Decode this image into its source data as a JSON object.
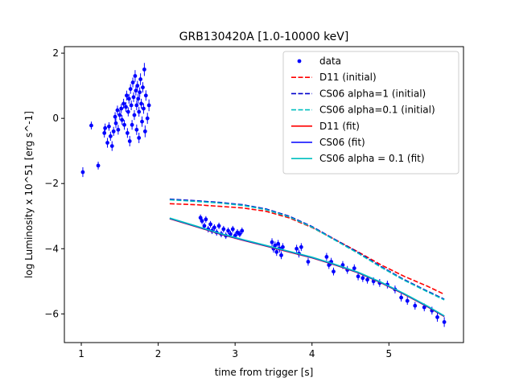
{
  "chart_data": {
    "type": "scatter",
    "title": "GRB130420A [1.0-10000 keV]",
    "xlabel": "time from trigger [s]",
    "ylabel": "log Luminosity x 10^51 [erg s^-1]",
    "xlim": [
      0.78,
      5.97
    ],
    "ylim": [
      -6.88,
      2.2
    ],
    "xticks": [
      1,
      2,
      3,
      4,
      5
    ],
    "yticks": [
      -6,
      -4,
      -2,
      0,
      2
    ],
    "xtick_labels": [
      "1",
      "2",
      "3",
      "4",
      "5"
    ],
    "ytick_labels": [
      "−6",
      "−4",
      "−2",
      "0",
      "2"
    ],
    "legend_position": "top-right",
    "series": [
      {
        "name": "data",
        "kind": "errorbar-points",
        "color": "#0000ff",
        "points": [
          [
            1.02,
            -1.65,
            0.15
          ],
          [
            1.13,
            -0.22,
            0.12
          ],
          [
            1.22,
            -1.45,
            0.12
          ],
          [
            1.3,
            -0.45,
            0.14
          ],
          [
            1.31,
            -0.3,
            0.14
          ],
          [
            1.34,
            -0.75,
            0.15
          ],
          [
            1.36,
            -0.25,
            0.13
          ],
          [
            1.38,
            -0.55,
            0.14
          ],
          [
            1.4,
            -0.85,
            0.15
          ],
          [
            1.42,
            -0.4,
            0.14
          ],
          [
            1.44,
            0.05,
            0.14
          ],
          [
            1.45,
            -0.15,
            0.15
          ],
          [
            1.47,
            0.25,
            0.14
          ],
          [
            1.48,
            -0.35,
            0.15
          ],
          [
            1.5,
            0.1,
            0.15
          ],
          [
            1.52,
            0.3,
            0.14
          ],
          [
            1.53,
            -0.05,
            0.15
          ],
          [
            1.55,
            0.45,
            0.15
          ],
          [
            1.56,
            -0.2,
            0.15
          ],
          [
            1.58,
            0.35,
            0.15
          ],
          [
            1.59,
            0.7,
            0.15
          ],
          [
            1.6,
            -0.45,
            0.15
          ],
          [
            1.61,
            0.2,
            0.14
          ],
          [
            1.62,
            0.6,
            0.15
          ],
          [
            1.63,
            -0.7,
            0.16
          ],
          [
            1.64,
            0.9,
            0.15
          ],
          [
            1.65,
            0.4,
            0.15
          ],
          [
            1.66,
            -0.2,
            0.15
          ],
          [
            1.67,
            1.1,
            0.15
          ],
          [
            1.68,
            0.65,
            0.15
          ],
          [
            1.69,
            0.1,
            0.15
          ],
          [
            1.7,
            1.3,
            0.18
          ],
          [
            1.71,
            0.85,
            0.15
          ],
          [
            1.72,
            0.4,
            0.15
          ],
          [
            1.72,
            -0.35,
            0.16
          ],
          [
            1.73,
            1.0,
            0.15
          ],
          [
            1.74,
            0.6,
            0.15
          ],
          [
            1.75,
            0.2,
            0.15
          ],
          [
            1.75,
            -0.6,
            0.16
          ],
          [
            1.76,
            0.8,
            0.15
          ],
          [
            1.77,
            1.2,
            0.18
          ],
          [
            1.78,
            0.45,
            0.15
          ],
          [
            1.79,
            -0.1,
            0.16
          ],
          [
            1.8,
            0.95,
            0.16
          ],
          [
            1.81,
            0.3,
            0.16
          ],
          [
            1.82,
            1.5,
            0.2
          ],
          [
            1.83,
            -0.4,
            0.18
          ],
          [
            1.84,
            0.7,
            0.16
          ],
          [
            1.86,
            0.0,
            0.17
          ],
          [
            1.88,
            0.4,
            0.18
          ],
          [
            2.55,
            -3.05,
            0.1
          ],
          [
            2.57,
            -3.15,
            0.1
          ],
          [
            2.6,
            -3.3,
            0.1
          ],
          [
            2.62,
            -3.1,
            0.1
          ],
          [
            2.65,
            -3.4,
            0.1
          ],
          [
            2.68,
            -3.25,
            0.1
          ],
          [
            2.7,
            -3.45,
            0.1
          ],
          [
            2.73,
            -3.35,
            0.1
          ],
          [
            2.76,
            -3.5,
            0.1
          ],
          [
            2.79,
            -3.3,
            0.1
          ],
          [
            2.82,
            -3.55,
            0.1
          ],
          [
            2.85,
            -3.4,
            0.1
          ],
          [
            2.88,
            -3.6,
            0.1
          ],
          [
            2.91,
            -3.45,
            0.1
          ],
          [
            2.94,
            -3.55,
            0.1
          ],
          [
            2.97,
            -3.4,
            0.1
          ],
          [
            3.0,
            -3.6,
            0.1
          ],
          [
            3.03,
            -3.5,
            0.1
          ],
          [
            3.06,
            -3.55,
            0.1
          ],
          [
            3.09,
            -3.45,
            0.1
          ],
          [
            3.48,
            -3.8,
            0.12
          ],
          [
            3.5,
            -4.0,
            0.12
          ],
          [
            3.52,
            -3.9,
            0.12
          ],
          [
            3.54,
            -4.1,
            0.12
          ],
          [
            3.56,
            -3.85,
            0.12
          ],
          [
            3.58,
            -4.0,
            0.12
          ],
          [
            3.6,
            -4.2,
            0.12
          ],
          [
            3.62,
            -3.95,
            0.12
          ],
          [
            3.8,
            -4.0,
            0.12
          ],
          [
            3.83,
            -4.15,
            0.12
          ],
          [
            3.86,
            -3.95,
            0.12
          ],
          [
            3.95,
            -4.4,
            0.12
          ],
          [
            4.19,
            -4.25,
            0.12
          ],
          [
            4.22,
            -4.5,
            0.12
          ],
          [
            4.25,
            -4.4,
            0.12
          ],
          [
            4.28,
            -4.7,
            0.12
          ],
          [
            4.4,
            -4.5,
            0.12
          ],
          [
            4.46,
            -4.65,
            0.12
          ],
          [
            4.55,
            -4.6,
            0.12
          ],
          [
            4.6,
            -4.85,
            0.12
          ],
          [
            4.66,
            -4.9,
            0.12
          ],
          [
            4.72,
            -4.95,
            0.12
          ],
          [
            4.8,
            -5.0,
            0.12
          ],
          [
            4.88,
            -5.05,
            0.12
          ],
          [
            4.98,
            -5.1,
            0.12
          ],
          [
            5.08,
            -5.25,
            0.12
          ],
          [
            5.16,
            -5.5,
            0.12
          ],
          [
            5.24,
            -5.6,
            0.12
          ],
          [
            5.34,
            -5.75,
            0.12
          ],
          [
            5.46,
            -5.8,
            0.12
          ],
          [
            5.56,
            -5.9,
            0.12
          ],
          [
            5.63,
            -6.1,
            0.14
          ],
          [
            5.72,
            -6.25,
            0.15
          ]
        ]
      },
      {
        "name": "D11 (initial)",
        "kind": "line",
        "color": "#ff0000",
        "dash": "dashed",
        "x": [
          2.15,
          2.5,
          2.8,
          3.1,
          3.4,
          3.7,
          4.0,
          4.3,
          4.6,
          4.9,
          5.2,
          5.5,
          5.72
        ],
        "y": [
          -2.62,
          -2.65,
          -2.7,
          -2.75,
          -2.85,
          -3.05,
          -3.35,
          -3.72,
          -4.1,
          -4.5,
          -4.85,
          -5.15,
          -5.4
        ]
      },
      {
        "name": "CS06 alpha=1 (initial)",
        "kind": "line",
        "color": "#0000cc",
        "dash": "dashed",
        "x": [
          2.15,
          2.5,
          2.8,
          3.1,
          3.4,
          3.7,
          4.0,
          4.3,
          4.6,
          4.9,
          5.2,
          5.5,
          5.72
        ],
        "y": [
          -2.48,
          -2.53,
          -2.58,
          -2.65,
          -2.78,
          -3.0,
          -3.32,
          -3.72,
          -4.12,
          -4.55,
          -4.95,
          -5.3,
          -5.55
        ]
      },
      {
        "name": "CS06 alpha=0.1 (initial)",
        "kind": "line",
        "color": "#00bfbf",
        "dash": "dashed",
        "x": [
          2.15,
          2.5,
          2.8,
          3.1,
          3.4,
          3.7,
          4.0,
          4.3,
          4.6,
          4.9,
          5.2,
          5.5,
          5.72
        ],
        "y": [
          -2.5,
          -2.55,
          -2.6,
          -2.67,
          -2.8,
          -3.02,
          -3.34,
          -3.74,
          -4.14,
          -4.57,
          -4.97,
          -5.32,
          -5.57
        ]
      },
      {
        "name": "D11 (fit)",
        "kind": "line",
        "color": "#ff0000",
        "dash": "solid",
        "x": [
          2.15,
          2.5,
          2.8,
          3.1,
          3.4,
          3.7,
          4.0,
          4.3,
          4.6,
          4.9,
          5.2,
          5.5,
          5.72
        ],
        "y": [
          -3.08,
          -3.33,
          -3.55,
          -3.74,
          -3.92,
          -4.1,
          -4.28,
          -4.5,
          -4.74,
          -5.05,
          -5.4,
          -5.78,
          -6.08
        ]
      },
      {
        "name": "CS06 (fit)",
        "kind": "line",
        "color": "#0000ff",
        "dash": "solid",
        "x": [
          2.15,
          2.5,
          2.8,
          3.1,
          3.4,
          3.7,
          4.0,
          4.3,
          4.6,
          4.9,
          5.2,
          5.5,
          5.72
        ],
        "y": [
          -3.07,
          -3.32,
          -3.54,
          -3.73,
          -3.91,
          -4.09,
          -4.27,
          -4.49,
          -4.73,
          -5.04,
          -5.39,
          -5.77,
          -6.07
        ]
      },
      {
        "name": "CS06 alpha = 0.1 (fit)",
        "kind": "line",
        "color": "#00bfbf",
        "dash": "solid",
        "x": [
          2.15,
          2.5,
          2.8,
          3.1,
          3.4,
          3.7,
          4.0,
          4.3,
          4.6,
          4.9,
          5.2,
          5.5,
          5.72
        ],
        "y": [
          -3.06,
          -3.31,
          -3.53,
          -3.72,
          -3.9,
          -4.08,
          -4.26,
          -4.48,
          -4.72,
          -5.03,
          -5.38,
          -5.76,
          -6.06
        ]
      }
    ]
  }
}
